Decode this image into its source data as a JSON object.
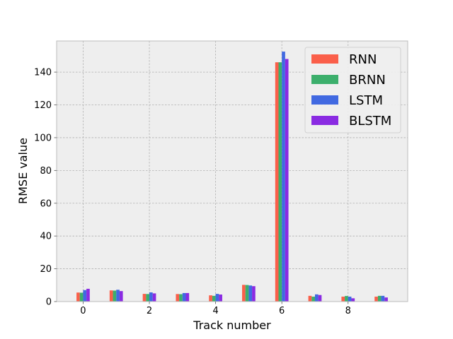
{
  "chart_data": {
    "type": "bar",
    "xlabel": "Track number",
    "ylabel": "RMSE value",
    "categories": [
      0,
      1,
      2,
      3,
      4,
      5,
      6,
      7,
      8,
      9
    ],
    "x_ticks": [
      "0",
      "2",
      "4",
      "6",
      "8"
    ],
    "y_ticks": [
      "0",
      "20",
      "40",
      "60",
      "80",
      "100",
      "120",
      "140"
    ],
    "ylim": [
      0,
      159
    ],
    "xlim": [
      -0.8,
      9.8
    ],
    "grid": true,
    "legend_position": "top-right",
    "series": [
      {
        "name": "RNN",
        "color": "#fa5f4a",
        "values": [
          5.5,
          6.8,
          4.7,
          4.6,
          3.8,
          10.2,
          146.0,
          3.5,
          3.0,
          3.0
        ]
      },
      {
        "name": "BRNN",
        "color": "#3caf6c",
        "values": [
          5.4,
          6.7,
          4.6,
          4.5,
          3.5,
          10.1,
          146.0,
          3.0,
          3.4,
          3.5
        ]
      },
      {
        "name": "LSTM",
        "color": "#4169e1",
        "values": [
          7.0,
          7.2,
          5.6,
          5.2,
          4.7,
          9.8,
          152.5,
          4.4,
          3.0,
          3.5
        ]
      },
      {
        "name": "BLSTM",
        "color": "#8a2be2",
        "values": [
          7.8,
          6.4,
          5.0,
          5.2,
          4.3,
          9.4,
          148.0,
          4.0,
          2.0,
          2.5
        ]
      }
    ]
  }
}
